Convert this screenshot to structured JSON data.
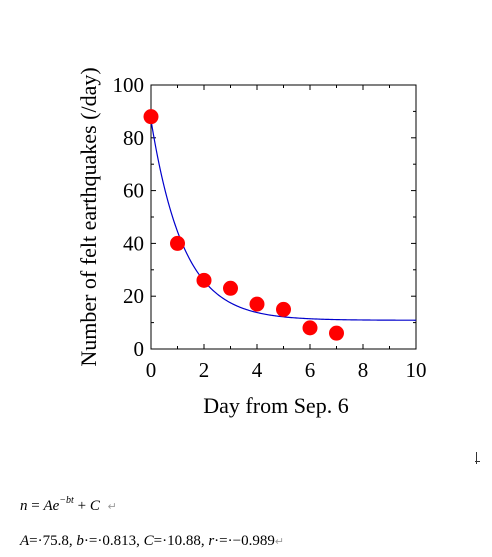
{
  "chart_data": {
    "type": "scatter",
    "xlabel": "Day from Sep. 6",
    "ylabel": "Number of felt earthquakes (/day)",
    "xlim": [
      0,
      10
    ],
    "ylim": [
      0,
      100
    ],
    "xticks": [
      "0",
      "2",
      "4",
      "6",
      "8",
      "10"
    ],
    "yticks": [
      "0",
      "20",
      "40",
      "60",
      "80",
      "100"
    ],
    "grid": false,
    "points": {
      "x": [
        0,
        1,
        2,
        3,
        4,
        5,
        6,
        7
      ],
      "y": [
        88,
        40,
        26,
        23,
        17,
        15,
        8,
        6
      ],
      "color": "#ff0000"
    },
    "fit": {
      "model": "n = A*exp(-b*t) + C",
      "A": 75.8,
      "b": 0.813,
      "C": 10.88,
      "color": "#0000cc"
    }
  },
  "equation": {
    "line1": {
      "n": "n",
      "eq": " = ",
      "A": "A",
      "e": "e",
      "exp": "−bt",
      "plus": " + ",
      "C": "C"
    },
    "line2": {
      "A_label": "A",
      "A_value": "=·75.8, ",
      "b_label": "b",
      "b_value": "·=·0.813, ",
      "C_label": "C",
      "C_value": "=·10.88, ",
      "r_label": "r",
      "r_value": "·=·−0.989"
    }
  }
}
